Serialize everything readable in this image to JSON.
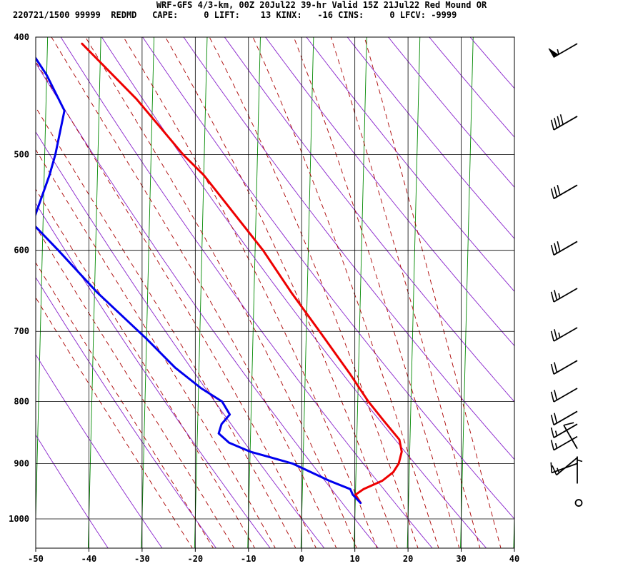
{
  "header": {
    "line1": "WRF-GFS 4/3-km, 00Z 20Jul22 39-hr Valid 15Z 21Jul22 Red Mound OR",
    "line2": "220721/1500 99999  REDMD   CAPE:     0 LIFT:    13 KINX:   -16 CINS:     0 LFCV: -9999"
  },
  "chart_data": {
    "type": "line",
    "title": "WRF-GFS 4/3-km, 00Z 20Jul22 39-hr Valid 15Z 21Jul22 Red Mound OR",
    "xlabel": "",
    "ylabel": "",
    "x_axis": {
      "lim": [
        -50,
        40
      ],
      "ticks": [
        -50,
        -40,
        -30,
        -20,
        -10,
        0,
        10,
        20,
        30,
        40
      ]
    },
    "y_axis": {
      "scale": "log",
      "lim": [
        1040,
        400
      ],
      "ticks": [
        400,
        500,
        600,
        700,
        800,
        900,
        1000
      ]
    },
    "grid": true,
    "background_lines": [
      "isotherms (skewed, green)",
      "dry adiabats (purple)",
      "moist adiabats (dashed dark red)"
    ],
    "series": [
      {
        "color": "#ee0000",
        "points": [
          {
            "p": 970,
            "t": 11.0
          },
          {
            "p": 955,
            "t": 10.0
          },
          {
            "p": 945,
            "t": 11.5
          },
          {
            "p": 930,
            "t": 15.0
          },
          {
            "p": 915,
            "t": 17.0
          },
          {
            "p": 900,
            "t": 18.0
          },
          {
            "p": 880,
            "t": 18.5
          },
          {
            "p": 860,
            "t": 18.0
          },
          {
            "p": 830,
            "t": 15.0
          },
          {
            "p": 800,
            "t": 12.0
          },
          {
            "p": 760,
            "t": 8.5
          },
          {
            "p": 700,
            "t": 2.5
          },
          {
            "p": 650,
            "t": -3.0
          },
          {
            "p": 600,
            "t": -8.5
          },
          {
            "p": 550,
            "t": -15.5
          },
          {
            "p": 520,
            "t": -20.0
          },
          {
            "p": 500,
            "t": -24.0
          },
          {
            "p": 450,
            "t": -33.0
          },
          {
            "p": 405,
            "t": -43.5
          }
        ]
      },
      {
        "color": "#0000ee",
        "points": [
          {
            "p": 970,
            "t": 11.0
          },
          {
            "p": 955,
            "t": 9.5
          },
          {
            "p": 945,
            "t": 9.0
          },
          {
            "p": 930,
            "t": 5.0
          },
          {
            "p": 900,
            "t": -2.0
          },
          {
            "p": 880,
            "t": -10.0
          },
          {
            "p": 865,
            "t": -14.0
          },
          {
            "p": 850,
            "t": -16.0
          },
          {
            "p": 835,
            "t": -15.5
          },
          {
            "p": 820,
            "t": -14.0
          },
          {
            "p": 800,
            "t": -15.5
          },
          {
            "p": 780,
            "t": -19.5
          },
          {
            "p": 750,
            "t": -24.5
          },
          {
            "p": 710,
            "t": -30.0
          },
          {
            "p": 650,
            "t": -39.5
          },
          {
            "p": 600,
            "t": -47.0
          },
          {
            "p": 570,
            "t": -52.0
          },
          {
            "p": 520,
            "t": -49.0
          },
          {
            "p": 500,
            "t": -48.0
          },
          {
            "p": 460,
            "t": -46.5
          },
          {
            "p": 430,
            "t": -50.0
          },
          {
            "p": 405,
            "t": -54.0
          }
        ]
      }
    ],
    "wind_profile": {
      "calm_level_hpa": 970,
      "barbs": [
        {
          "p": 405,
          "dir": 240,
          "speed": 55
        },
        {
          "p": 465,
          "dir": 240,
          "speed": 40
        },
        {
          "p": 530,
          "dir": 240,
          "speed": 30
        },
        {
          "p": 590,
          "dir": 240,
          "speed": 30
        },
        {
          "p": 645,
          "dir": 240,
          "speed": 25
        },
        {
          "p": 695,
          "dir": 240,
          "speed": 25
        },
        {
          "p": 740,
          "dir": 240,
          "speed": 20
        },
        {
          "p": 780,
          "dir": 240,
          "speed": 20
        },
        {
          "p": 815,
          "dir": 240,
          "speed": 20
        },
        {
          "p": 835,
          "dir": 240,
          "speed": 15
        },
        {
          "p": 855,
          "dir": 240,
          "speed": 15
        },
        {
          "p": 875,
          "dir": 330,
          "speed": 10
        },
        {
          "p": 890,
          "dir": 230,
          "speed": 15
        },
        {
          "p": 900,
          "dir": 250,
          "speed": 10
        },
        {
          "p": 935,
          "dir": 0,
          "speed": 5
        }
      ]
    }
  }
}
